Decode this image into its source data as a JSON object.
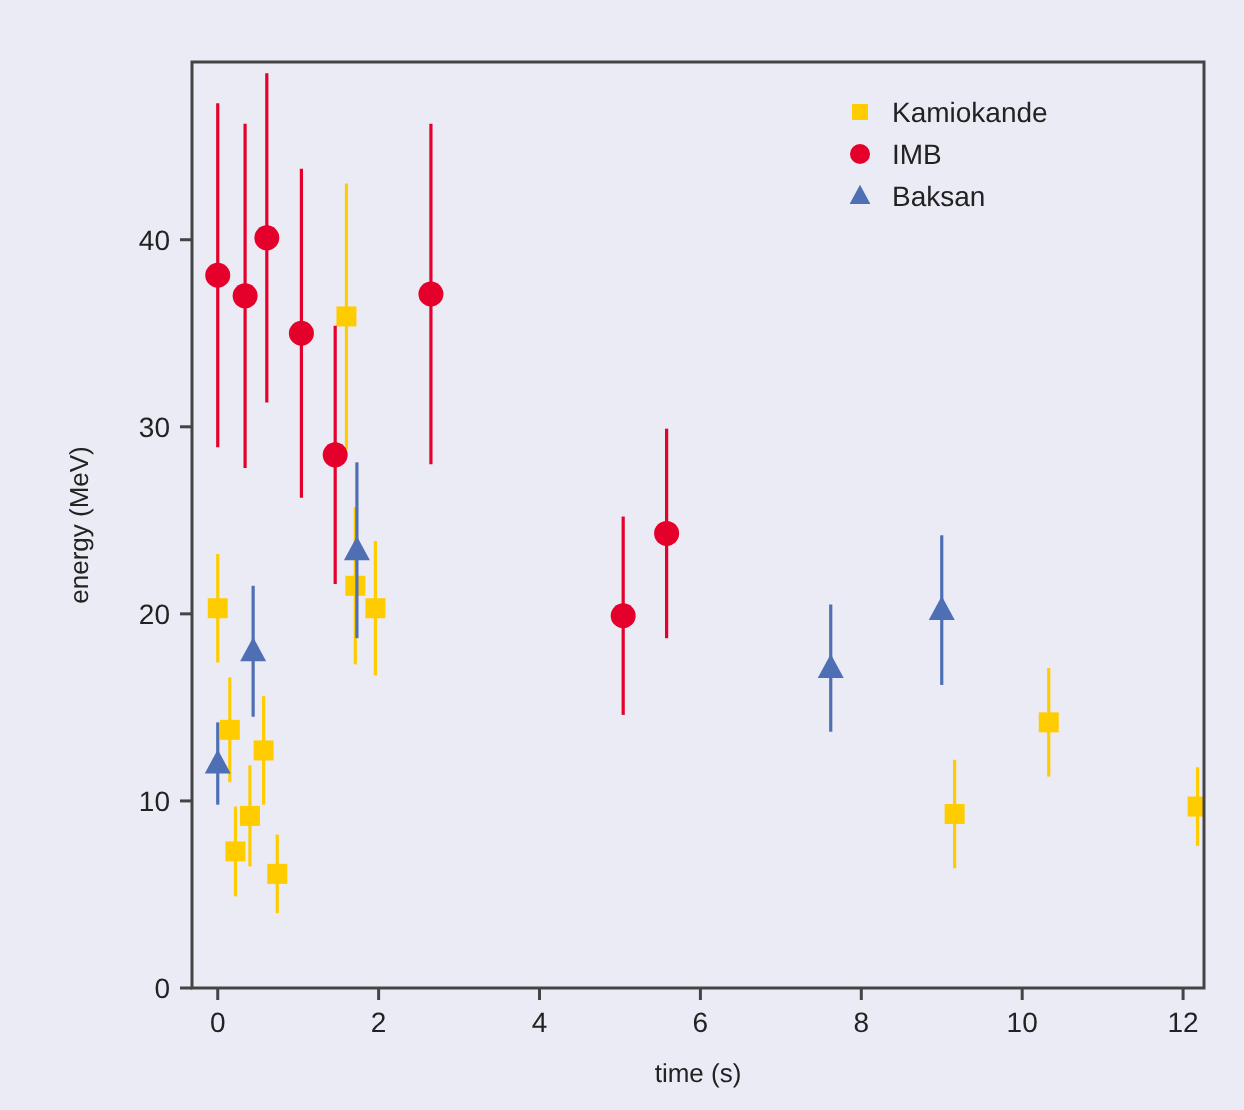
{
  "chart_data": {
    "type": "scatter",
    "xlabel": "time (s)",
    "ylabel": "energy (MeV)",
    "xlim": [
      -0.32,
      12.26
    ],
    "ylim": [
      0,
      49.5
    ],
    "xticks": [
      0,
      2,
      4,
      6,
      8,
      10,
      12
    ],
    "yticks": [
      0,
      10,
      20,
      30,
      40
    ],
    "grid": false,
    "legend": "top right",
    "series": [
      {
        "name": "Kamiokande",
        "color": "#ffcc00",
        "marker": "square",
        "x": [
          0,
          0.15,
          0.22,
          0.4,
          0.57,
          0.74,
          1.6,
          1.71,
          1.96,
          9.16,
          10.33,
          12.18
        ],
        "values": [
          20.3,
          13.8,
          7.3,
          9.2,
          12.7,
          6.1,
          35.9,
          21.5,
          20.3,
          9.3,
          14.2,
          9.7
        ],
        "errors": [
          2.9,
          2.8,
          2.4,
          2.7,
          2.9,
          2.1,
          7.1,
          4.2,
          3.6,
          2.9,
          2.9,
          2.1
        ]
      },
      {
        "name": "IMB",
        "color": "#e4002b",
        "marker": "circle",
        "x": [
          0,
          0.34,
          0.61,
          1.04,
          1.46,
          2.65,
          5.04,
          5.58
        ],
        "values": [
          38.1,
          37.0,
          40.1,
          35.0,
          28.5,
          37.1,
          19.9,
          24.3
        ],
        "errors": [
          9.2,
          9.2,
          8.8,
          8.8,
          6.9,
          9.1,
          5.3,
          5.6
        ]
      },
      {
        "name": "Baksan",
        "color": "#4f6fb5",
        "marker": "triangle",
        "x": [
          0,
          0.44,
          1.73,
          7.62,
          9.0
        ],
        "values": [
          12.0,
          18.0,
          23.4,
          17.1,
          20.2
        ],
        "errors": [
          2.2,
          3.5,
          4.7,
          3.4,
          4.0
        ]
      }
    ]
  }
}
